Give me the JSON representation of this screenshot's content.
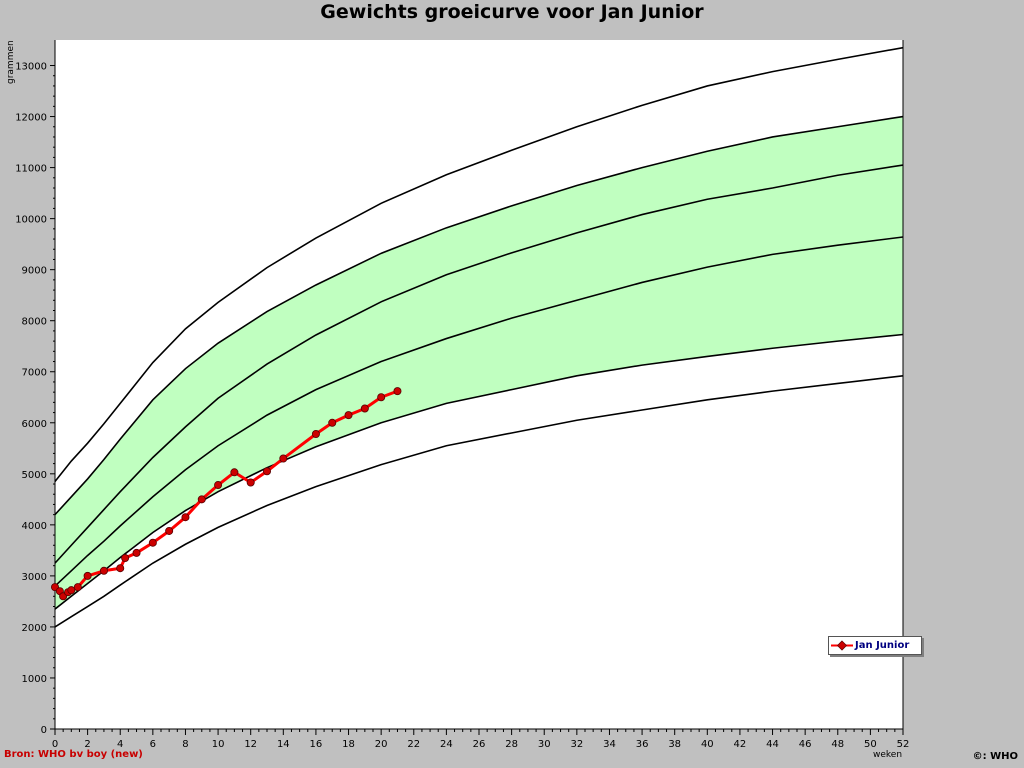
{
  "chart_data": {
    "type": "line",
    "title": "Gewichts groeicurve voor Jan Junior",
    "xlabel": "weken",
    "ylabel": "grammen",
    "xlim": [
      0,
      52
    ],
    "ylim": [
      0,
      13500
    ],
    "x_ticks": [
      0,
      2,
      4,
      6,
      8,
      10,
      12,
      14,
      16,
      18,
      20,
      22,
      24,
      26,
      28,
      30,
      32,
      34,
      36,
      38,
      40,
      42,
      44,
      46,
      48,
      50,
      52
    ],
    "y_ticks": [
      0,
      1000,
      2000,
      3000,
      4000,
      5000,
      6000,
      7000,
      8000,
      9000,
      10000,
      11000,
      12000,
      13000
    ],
    "grid": false,
    "legend_position": "bottom-right",
    "percentile_x": [
      0,
      1,
      2,
      3,
      4,
      6,
      8,
      10,
      13,
      16,
      20,
      24,
      28,
      32,
      36,
      40,
      44,
      48,
      52
    ],
    "reference_curves": [
      [
        2000,
        2200,
        2400,
        2600,
        2820,
        3250,
        3620,
        3950,
        4380,
        4750,
        5180,
        5550,
        5800,
        6050,
        6250,
        6450,
        6620,
        6770,
        6920
      ],
      [
        2350,
        2600,
        2850,
        3100,
        3360,
        3850,
        4280,
        4650,
        5120,
        5530,
        6000,
        6380,
        6650,
        6920,
        7130,
        7300,
        7460,
        7600,
        7730
      ],
      [
        2800,
        3100,
        3400,
        3680,
        3980,
        4550,
        5080,
        5550,
        6150,
        6650,
        7200,
        7650,
        8050,
        8400,
        8750,
        9050,
        9300,
        9480,
        9640
      ],
      [
        3250,
        3600,
        3950,
        4300,
        4650,
        5320,
        5920,
        6480,
        7150,
        7720,
        8370,
        8900,
        9330,
        9720,
        10080,
        10380,
        10600,
        10850,
        11050
      ],
      [
        4200,
        4550,
        4900,
        5280,
        5680,
        6450,
        7060,
        7560,
        8180,
        8700,
        9320,
        9820,
        10250,
        10650,
        11000,
        11320,
        11600,
        11800,
        12000
      ],
      [
        4850,
        5250,
        5600,
        5980,
        6380,
        7180,
        7840,
        8360,
        9040,
        9620,
        10300,
        10860,
        11340,
        11800,
        12220,
        12600,
        12880,
        13120,
        13350
      ]
    ],
    "band_fill": "#c0ffc0",
    "series": [
      {
        "name": "Jan Junior",
        "color": "#ff0000",
        "marker_color": "#cc0000",
        "x": [
          0,
          0.3,
          0.5,
          0.8,
          1,
          1.4,
          2,
          3,
          4,
          4.3,
          5,
          6,
          7,
          8,
          9,
          10,
          11,
          12,
          13,
          14,
          16,
          17,
          18,
          19,
          20,
          21
        ],
        "y": [
          2780,
          2700,
          2600,
          2680,
          2720,
          2780,
          3000,
          3100,
          3150,
          3350,
          3450,
          3650,
          3880,
          4150,
          4500,
          4780,
          5030,
          4830,
          5050,
          5300,
          5780,
          6000,
          6150,
          6280,
          6500,
          6620
        ]
      }
    ]
  },
  "source_note": "Bron: WHO bv boy (new)",
  "copyright_note": "©: WHO"
}
